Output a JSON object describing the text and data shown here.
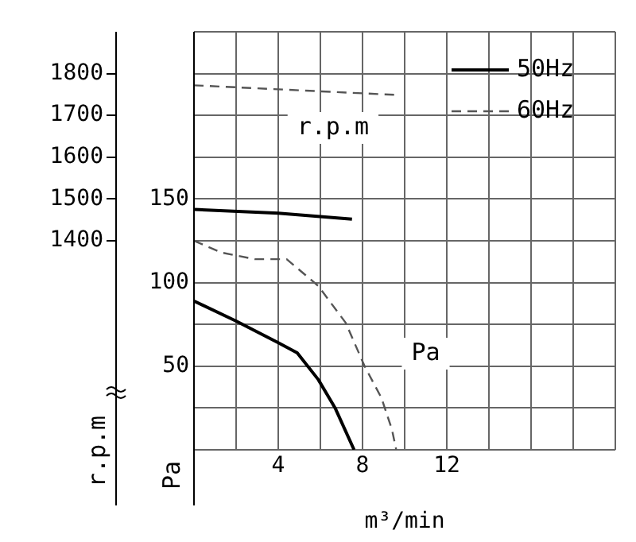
{
  "chart_data": {
    "type": "line",
    "xlabel": "m³/min",
    "ylabel": "r.p.m",
    "y2label": "Pa",
    "annotations": [
      "r.p.m",
      "Pa"
    ],
    "series": [
      {
        "name": "50Hz",
        "color": "#000000",
        "line_style": "solid",
        "axis": "y2",
        "x": [
          0,
          2,
          4,
          4.9,
          5.9,
          6.7,
          7.6
        ],
        "values": [
          89,
          77,
          64,
          58,
          42,
          25,
          0
        ]
      },
      {
        "name": "60Hz",
        "color": "#555555",
        "line_style": "dashed",
        "axis": "y2",
        "x": [
          0,
          1.3,
          2.9,
          4.4,
          5.9,
          7.2,
          8.1,
          8.9,
          9.4,
          9.6
        ],
        "values": [
          125,
          118,
          114,
          114,
          98,
          76,
          50,
          31,
          12,
          0
        ]
      },
      {
        "color": "#000000",
        "line_style": "solid",
        "x": [
          0,
          4,
          7.5
        ],
        "values": [
          1475,
          1466,
          1452
        ]
      },
      {
        "color": "#555555",
        "line_style": "dashed",
        "x": [
          0,
          9.6
        ],
        "values": [
          1772,
          1749
        ]
      }
    ],
    "xlim": [
      0,
      20
    ],
    "xticks": [
      {
        "value": 0,
        "label": null
      },
      {
        "value": 2,
        "label": null
      },
      4,
      {
        "value": 6,
        "label": null
      },
      8,
      {
        "value": 10,
        "label": null
      },
      12,
      {
        "value": 14,
        "label": null
      },
      {
        "value": 16,
        "label": null
      },
      {
        "value": 18,
        "label": null
      },
      {
        "value": 20,
        "label": null
      }
    ],
    "ylim": [
      900,
      1900
    ],
    "yticks": [
      1400,
      1500,
      1600,
      1700,
      1800
    ],
    "y2lim": [
      0,
      250
    ],
    "y2ticks": [
      {
        "value": 0,
        "label": null
      },
      {
        "value": 25,
        "label": null
      },
      50,
      {
        "value": 75,
        "label": null
      },
      100,
      {
        "value": 125,
        "label": null
      },
      150,
      {
        "value": 175,
        "label": null
      },
      {
        "value": 200,
        "label": null
      },
      {
        "value": 225,
        "label": null
      },
      {
        "value": 250,
        "label": null
      }
    ],
    "grid": true,
    "legend": "top right",
    "marker": "none"
  }
}
